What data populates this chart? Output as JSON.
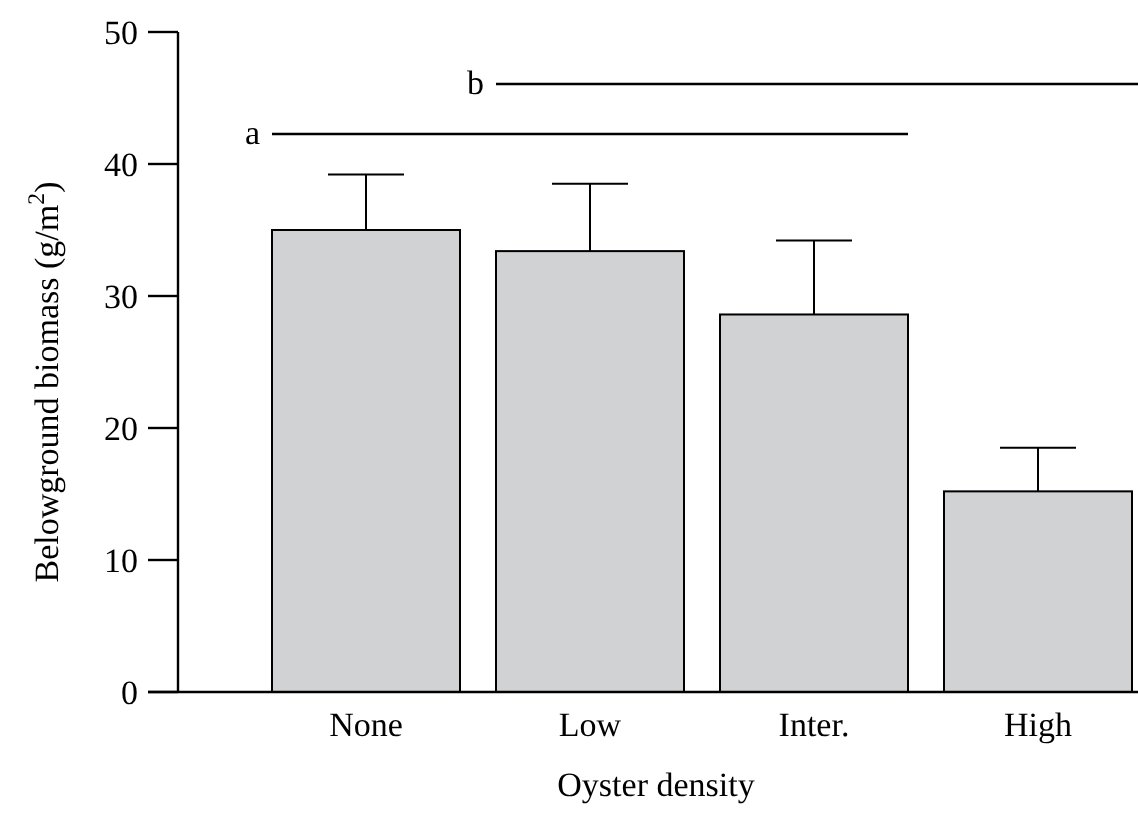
{
  "chart_data": {
    "type": "bar",
    "xlabel": "Oyster density",
    "ylabel": "Belowground biomass (g/m$^{2}$)",
    "categories": [
      "None",
      "Low",
      "Inter.",
      "High"
    ],
    "values": [
      35.0,
      33.4,
      28.6,
      15.2
    ],
    "errors": [
      [
        35.0,
        39.2
      ],
      [
        33.4,
        38.5
      ],
      [
        28.6,
        34.2
      ],
      [
        15.2,
        18.5
      ]
    ],
    "color": "#d1d2d4",
    "ylim": [
      0,
      50
    ],
    "yticks": [
      0,
      10,
      20,
      30,
      40,
      50
    ],
    "annotations": [
      "a",
      "b"
    ]
  }
}
